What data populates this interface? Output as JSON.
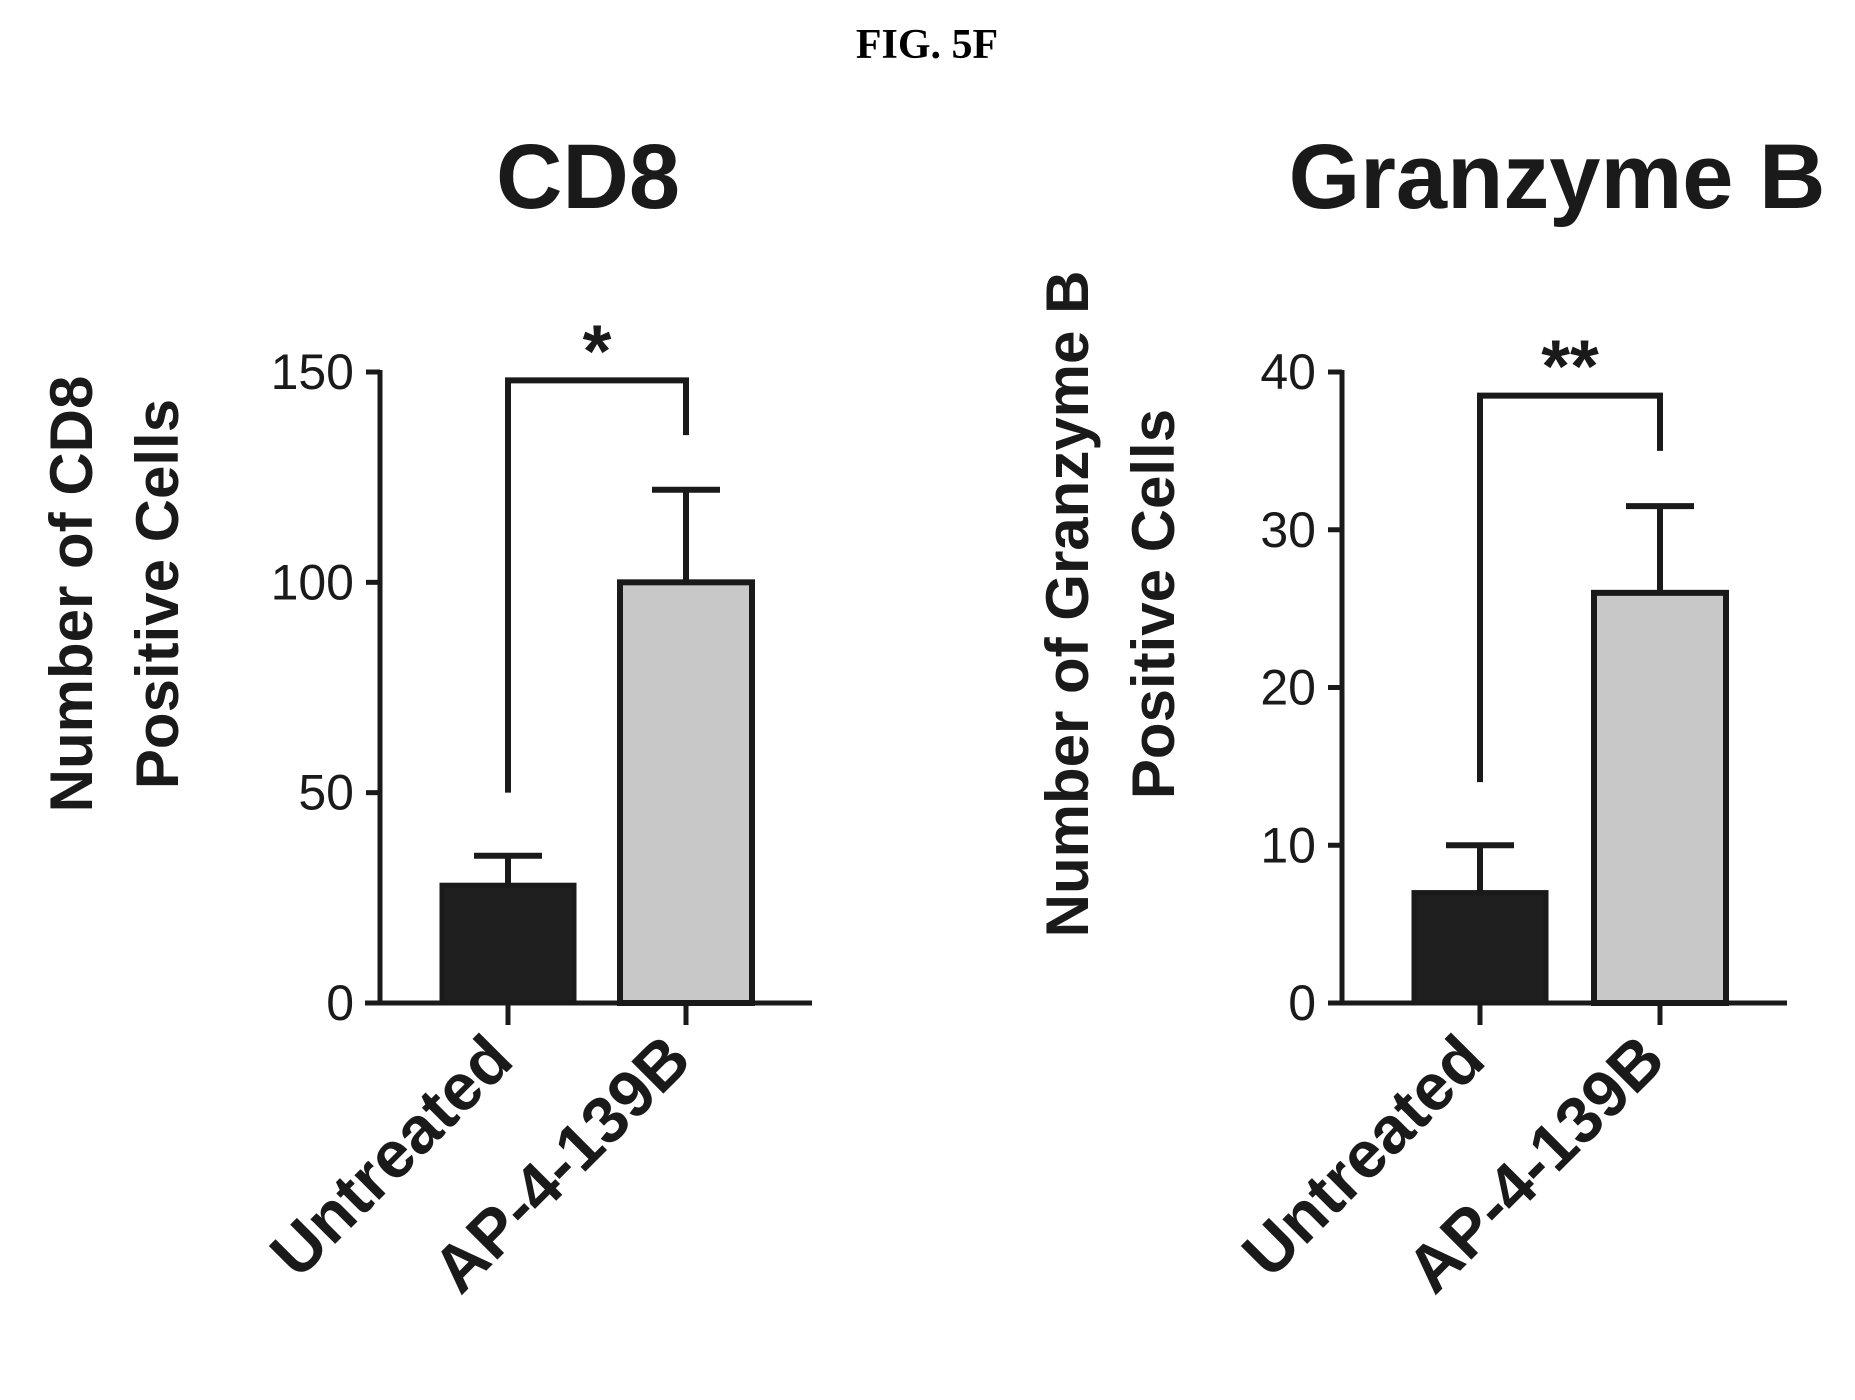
{
  "figure_label": "FIG. 5F",
  "chart_data": [
    {
      "type": "bar",
      "title": "CD8",
      "ylabel_lines": [
        "Number of CD8",
        "Positive Cells"
      ],
      "categories": [
        "Untreated",
        "AP-4-139B"
      ],
      "values": [
        28,
        100
      ],
      "errors": [
        7,
        22
      ],
      "bar_colors": [
        "#1f1f1f",
        "#c8c8c8"
      ],
      "ylim": [
        0,
        150
      ],
      "yticks": [
        0,
        50,
        100,
        150
      ],
      "ytick_labels": [
        "0",
        "50",
        "100",
        "150"
      ],
      "significance": {
        "label": "*",
        "left_end": 50,
        "right_end": 135,
        "top": 148
      }
    },
    {
      "type": "bar",
      "title": "Granzyme B",
      "ylabel_lines": [
        "Number of Granzyme B",
        "Positive Cells"
      ],
      "categories": [
        "Untreated",
        "AP-4-139B"
      ],
      "values": [
        7,
        26
      ],
      "errors": [
        3,
        5.5
      ],
      "bar_colors": [
        "#1f1f1f",
        "#c8c8c8"
      ],
      "ylim": [
        0,
        40
      ],
      "yticks": [
        0,
        10,
        20,
        30,
        40
      ],
      "ytick_labels": [
        "0",
        "10",
        "20",
        "30",
        "40"
      ],
      "significance": {
        "label": "**",
        "left_end": 14,
        "right_end": 35,
        "top": 38.5
      }
    }
  ]
}
